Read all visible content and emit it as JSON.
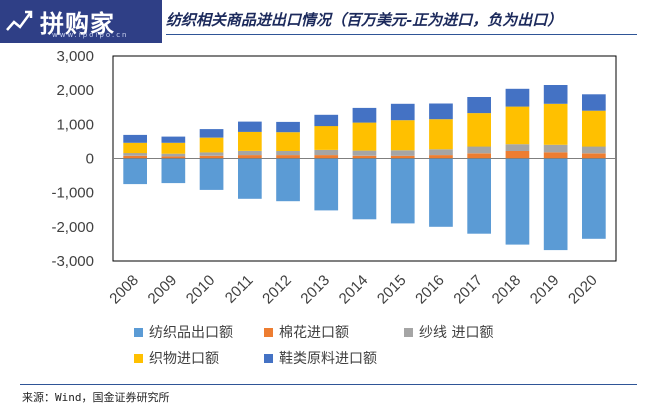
{
  "logo": {
    "brand": "拼购家",
    "url": "www.ipoipo.cn"
  },
  "title": "纺织相关商品进出口情况（百万美元-正为进口，负为出口）",
  "source": "来源：Wind，国金证券研究所",
  "chart_data": {
    "type": "bar",
    "stacked": true,
    "title": "纺织相关商品进出口情况（百万美元-正为进口，负为出口）",
    "categories": [
      "2008",
      "2009",
      "2010",
      "2011",
      "2012",
      "2013",
      "2014",
      "2015",
      "2016",
      "2017",
      "2018",
      "2019",
      "2020"
    ],
    "ylim": [
      -3000,
      3000
    ],
    "yticks": [
      3000,
      2000,
      1000,
      0,
      -1000,
      -2000,
      -3000
    ],
    "ytick_labels": [
      "3,000",
      "2,000",
      "1,000",
      "0",
      "-1,000",
      "-2,000",
      "-3,000"
    ],
    "grid": false,
    "legend_position": "bottom",
    "series": [
      {
        "name": "纺织品出口额",
        "color": "#5b9bd5",
        "values": [
          -750,
          -720,
          -920,
          -1180,
          -1250,
          -1520,
          -1780,
          -1900,
          -2000,
          -2200,
          -2520,
          -2680,
          -2350
        ]
      },
      {
        "name": "棉花进口额",
        "color": "#ed7d31",
        "values": [
          80,
          60,
          80,
          100,
          100,
          100,
          80,
          80,
          100,
          150,
          220,
          180,
          150
        ]
      },
      {
        "name": "纱线 进口额",
        "color": "#a5a5a5",
        "values": [
          80,
          80,
          100,
          120,
          120,
          150,
          150,
          160,
          170,
          200,
          200,
          220,
          200
        ]
      },
      {
        "name": "织物进口额",
        "color": "#ffc000",
        "values": [
          300,
          320,
          430,
          560,
          550,
          700,
          820,
          880,
          880,
          980,
          1100,
          1200,
          1050
        ]
      },
      {
        "name": "鞋类原料进口额",
        "color": "#4472c4",
        "values": [
          230,
          180,
          250,
          300,
          300,
          330,
          430,
          480,
          460,
          470,
          520,
          550,
          480
        ]
      }
    ]
  }
}
